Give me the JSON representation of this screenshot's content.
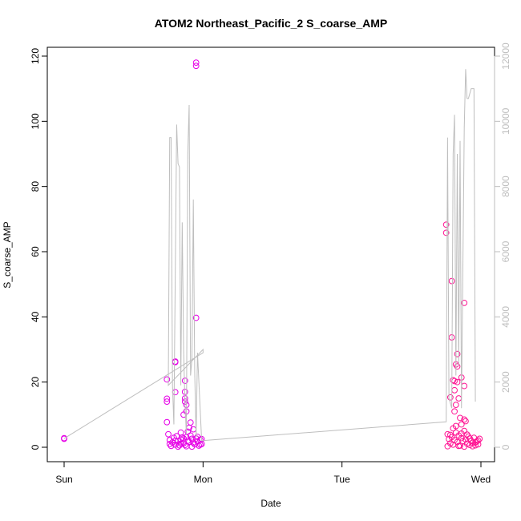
{
  "chart_data": {
    "type": "scatter",
    "title": "ATOM2 Northeast_Pacific_2 S_coarse_AMP",
    "xlabel": "Date",
    "ylabel": "S_coarse_AMP",
    "x_ticks": [
      {
        "label": "Sun",
        "day": 0
      },
      {
        "label": "Mon",
        "day": 1
      },
      {
        "label": "Tue",
        "day": 2
      },
      {
        "label": "Wed",
        "day": 3
      }
    ],
    "xlim": [
      0,
      3
    ],
    "ylim": [
      0,
      120
    ],
    "y_ticks": [
      0,
      20,
      40,
      60,
      80,
      100,
      120
    ],
    "y2lim": [
      0,
      12000
    ],
    "y2_ticks": [
      0,
      2000,
      4000,
      6000,
      8000,
      10000,
      12000
    ],
    "grid": false,
    "legend": "none",
    "colors": {
      "points_group_a": "#e600e6",
      "points_group_b": "#ff1493",
      "line": "#bebebe",
      "axis": "#000000",
      "right_axis": "#bebebe"
    },
    "series": [
      {
        "role": "points",
        "axis": "left",
        "color": "#e600e6",
        "points": [
          [
            0.0,
            2.8
          ],
          [
            0.0,
            2.6
          ],
          [
            0.74,
            20.8
          ],
          [
            0.74,
            14.9
          ],
          [
            0.74,
            14.0
          ],
          [
            0.74,
            7.7
          ],
          [
            0.75,
            4.0
          ],
          [
            0.8,
            26.3
          ],
          [
            0.8,
            26.1
          ],
          [
            0.8,
            16.9
          ],
          [
            0.87,
            20.4
          ],
          [
            0.87,
            17.0
          ],
          [
            0.87,
            15.0
          ],
          [
            0.87,
            14.0
          ],
          [
            0.88,
            13.0
          ],
          [
            0.88,
            11.0
          ],
          [
            0.86,
            10.0
          ],
          [
            0.95,
            118.0
          ],
          [
            0.95,
            117.0
          ],
          [
            0.95,
            39.7
          ],
          [
            0.91,
            7.6
          ],
          [
            0.9,
            6.0
          ],
          [
            0.93,
            5.5
          ],
          [
            0.84,
            4.5
          ],
          [
            0.89,
            4.8
          ],
          [
            0.76,
            2.2
          ],
          [
            0.78,
            1.5
          ],
          [
            0.8,
            0.8
          ],
          [
            0.82,
            1.9
          ],
          [
            0.84,
            2.4
          ],
          [
            0.86,
            1.2
          ],
          [
            0.88,
            3.1
          ],
          [
            0.9,
            1.7
          ],
          [
            0.92,
            2.6
          ],
          [
            0.94,
            0.9
          ],
          [
            0.96,
            1.8
          ],
          [
            0.98,
            2.3
          ],
          [
            0.99,
            1.0
          ],
          [
            0.77,
            0.4
          ],
          [
            0.79,
            2.9
          ],
          [
            0.81,
            3.4
          ],
          [
            0.83,
            0.6
          ],
          [
            0.85,
            3.0
          ],
          [
            0.87,
            0.7
          ],
          [
            0.89,
            2.0
          ],
          [
            0.91,
            3.6
          ],
          [
            0.93,
            1.4
          ],
          [
            0.95,
            2.7
          ],
          [
            0.97,
            0.5
          ],
          [
            0.99,
            2.5
          ],
          [
            0.76,
            1.0
          ],
          [
            0.8,
            2.0
          ],
          [
            0.84,
            1.1
          ],
          [
            0.88,
            0.3
          ],
          [
            0.92,
            0.2
          ],
          [
            0.96,
            3.2
          ],
          [
            0.98,
            0.8
          ],
          [
            0.82,
            0.2
          ],
          [
            0.86,
            2.7
          ]
        ]
      },
      {
        "role": "points",
        "axis": "left",
        "color": "#ff1493",
        "points": [
          [
            2.75,
            68.3
          ],
          [
            2.75,
            65.8
          ],
          [
            2.79,
            51.0
          ],
          [
            2.88,
            44.3
          ],
          [
            2.79,
            33.7
          ],
          [
            2.83,
            28.6
          ],
          [
            2.82,
            25.4
          ],
          [
            2.83,
            24.8
          ],
          [
            2.86,
            21.4
          ],
          [
            2.8,
            20.6
          ],
          [
            2.81,
            20.3
          ],
          [
            2.83,
            20.0
          ],
          [
            2.81,
            17.5
          ],
          [
            2.78,
            15.3
          ],
          [
            2.84,
            15.0
          ],
          [
            2.82,
            13.0
          ],
          [
            2.81,
            11.0
          ],
          [
            2.88,
            18.8
          ],
          [
            2.88,
            8.5
          ],
          [
            2.89,
            8.0
          ],
          [
            2.86,
            7.0
          ],
          [
            2.85,
            9.0
          ],
          [
            2.76,
            4.0
          ],
          [
            2.77,
            2.5
          ],
          [
            2.78,
            1.2
          ],
          [
            2.79,
            3.1
          ],
          [
            2.8,
            0.8
          ],
          [
            2.81,
            2.2
          ],
          [
            2.82,
            4.5
          ],
          [
            2.83,
            1.6
          ],
          [
            2.84,
            3.6
          ],
          [
            2.85,
            0.5
          ],
          [
            2.86,
            2.8
          ],
          [
            2.87,
            1.9
          ],
          [
            2.88,
            5.0
          ],
          [
            2.89,
            2.4
          ],
          [
            2.9,
            1.1
          ],
          [
            2.91,
            3.3
          ],
          [
            2.92,
            0.7
          ],
          [
            2.93,
            2.0
          ],
          [
            2.94,
            1.4
          ],
          [
            2.95,
            2.9
          ],
          [
            2.96,
            0.6
          ],
          [
            2.97,
            1.8
          ],
          [
            2.98,
            0.9
          ],
          [
            2.99,
            2.6
          ],
          [
            2.76,
            0.3
          ],
          [
            2.78,
            3.8
          ],
          [
            2.8,
            5.8
          ],
          [
            2.82,
            6.5
          ],
          [
            2.84,
            0.4
          ],
          [
            2.86,
            4.2
          ],
          [
            2.88,
            0.2
          ],
          [
            2.9,
            3.9
          ],
          [
            2.92,
            2.7
          ],
          [
            2.94,
            0.3
          ],
          [
            2.96,
            1.5
          ],
          [
            2.98,
            2.1
          ]
        ]
      },
      {
        "role": "line",
        "axis": "right",
        "color": "#bebebe",
        "points": [
          [
            0.0,
            270
          ],
          [
            1.0,
            2900
          ],
          [
            1.0,
            3000
          ],
          [
            0.75,
            1900
          ],
          [
            0.76,
            9500
          ],
          [
            0.77,
            9500
          ],
          [
            0.78,
            1900
          ],
          [
            0.79,
            700
          ],
          [
            0.81,
            9900
          ],
          [
            0.82,
            8700
          ],
          [
            0.83,
            8600
          ],
          [
            0.84,
            1900
          ],
          [
            0.85,
            6900
          ],
          [
            0.86,
            3000
          ],
          [
            0.87,
            1300
          ],
          [
            0.88,
            400
          ],
          [
            0.89,
            9000
          ],
          [
            0.9,
            10500
          ],
          [
            0.91,
            2200
          ],
          [
            0.92,
            2700
          ],
          [
            0.93,
            7600
          ],
          [
            0.94,
            2300
          ],
          [
            0.95,
            300
          ],
          [
            0.96,
            2900
          ],
          [
            0.99,
            200
          ],
          [
            2.75,
            780
          ],
          [
            2.76,
            9500
          ],
          [
            2.77,
            1500
          ],
          [
            2.79,
            1200
          ],
          [
            2.8,
            9000
          ],
          [
            2.81,
            10200
          ],
          [
            2.82,
            2200
          ],
          [
            2.83,
            9000
          ],
          [
            2.84,
            2500
          ],
          [
            2.85,
            9400
          ],
          [
            2.86,
            1200
          ],
          [
            2.88,
            9800
          ],
          [
            2.89,
            11600
          ],
          [
            2.9,
            10700
          ],
          [
            2.91,
            10700
          ],
          [
            2.93,
            11000
          ],
          [
            2.95,
            11000
          ],
          [
            2.96,
            1400
          ]
        ]
      }
    ]
  }
}
